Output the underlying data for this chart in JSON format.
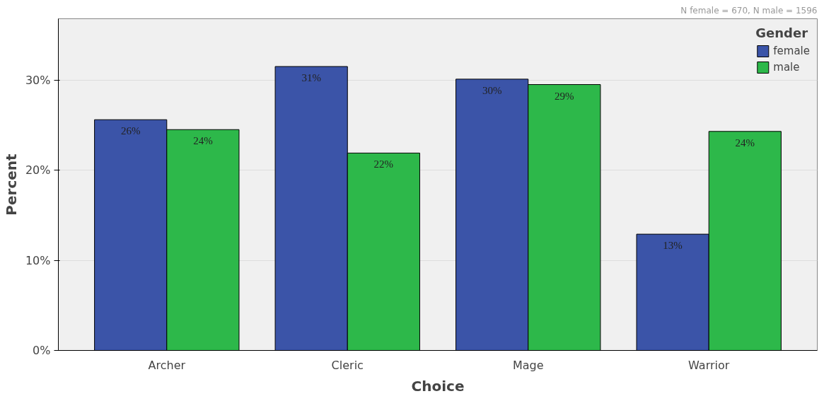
{
  "chart_data": {
    "type": "bar",
    "xlabel": "Choice",
    "ylabel": "Percent",
    "legend_title": "Gender",
    "categories": [
      "Archer",
      "Cleric",
      "Mage",
      "Warrior"
    ],
    "series": [
      {
        "name": "female",
        "color": "#3b54a8",
        "values": [
          25.6,
          31.5,
          30.1,
          12.9
        ],
        "value_labels": [
          "26%",
          "31%",
          "30%",
          "13%"
        ]
      },
      {
        "name": "male",
        "color": "#2db84a",
        "values": [
          24.5,
          21.9,
          29.5,
          24.3
        ],
        "value_labels": [
          "24%",
          "22%",
          "29%",
          "24%"
        ]
      }
    ],
    "ylim": [
      0,
      36.8
    ],
    "yticks": [
      {
        "value": 0,
        "label": "0%"
      },
      {
        "value": 10,
        "label": "10%"
      },
      {
        "value": 20,
        "label": "20%"
      },
      {
        "value": 30,
        "label": "30%"
      }
    ],
    "grid": "y",
    "legend": "top right",
    "annotations": [
      "N female = 670, N male = 1596"
    ]
  }
}
